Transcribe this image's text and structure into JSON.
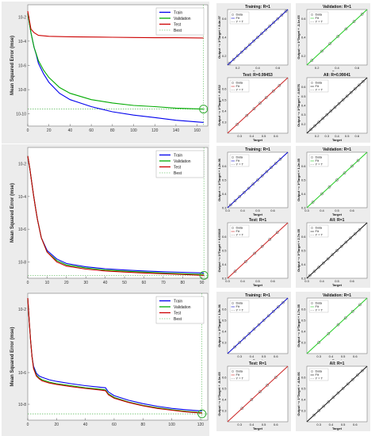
{
  "row_labels": [
    "JB",
    "T",
    "TG"
  ],
  "colors": {
    "train": "#0000ee",
    "validation": "#00aa00",
    "test": "#cc0000",
    "best": "#33aa33",
    "fit_train": "#0000cc",
    "fit_val": "#22cc22",
    "fit_test": "#cc2222",
    "fit_all": "#111111",
    "data_marker": "#555555"
  },
  "chart_data": [
    {
      "id": "perf-jb",
      "type": "line",
      "ylabel": "Mean Squared Error  (mse)",
      "yscale": "log",
      "ylim": [
        1e-11,
        0.1
      ],
      "xlim": [
        0,
        170
      ],
      "xticks": [
        0,
        20,
        40,
        60,
        80,
        100,
        120,
        140,
        160
      ],
      "yticks": [
        {
          "v": 0.01,
          "label": "10-2"
        },
        {
          "v": 0.0001,
          "label": "10-4"
        },
        {
          "v": 1e-06,
          "label": "10-6"
        },
        {
          "v": 1e-08,
          "label": "10-8"
        },
        {
          "v": 1e-10,
          "label": "10-10"
        }
      ],
      "legend": [
        "Train",
        "Validation",
        "Test",
        "Best"
      ],
      "best_epoch": 166,
      "best_value": 2.5e-10,
      "series": [
        {
          "name": "Train",
          "color": "#0000ee",
          "x": [
            0,
            3,
            6,
            8,
            10,
            15,
            20,
            30,
            40,
            60,
            80,
            100,
            120,
            140,
            166
          ],
          "y": [
            0.02,
            0.0005,
            3e-05,
            8e-06,
            1.5e-06,
            2e-07,
            4e-08,
            5e-09,
            1.5e-09,
            4e-10,
            1.5e-10,
            8e-11,
            5e-11,
            3e-11,
            2e-11
          ]
        },
        {
          "name": "Validation",
          "color": "#00aa00",
          "x": [
            0,
            3,
            6,
            8,
            10,
            15,
            20,
            30,
            40,
            60,
            80,
            100,
            120,
            140,
            166
          ],
          "y": [
            0.02,
            0.0005,
            3e-05,
            9e-06,
            2.5e-06,
            4e-07,
            1e-07,
            1.5e-08,
            5e-09,
            1.5e-09,
            8e-10,
            5e-10,
            4e-10,
            3e-10,
            2.5e-10
          ]
        },
        {
          "name": "Test",
          "color": "#cc0000",
          "x": [
            0,
            3,
            6,
            10,
            20,
            40,
            60,
            80,
            100,
            120,
            140,
            166
          ],
          "y": [
            0.03,
            0.001,
            0.0005,
            0.0003,
            0.00025,
            0.00023,
            0.00022,
            0.00021,
            0.0002,
            0.00019,
            0.00019,
            0.00018
          ]
        }
      ]
    },
    {
      "id": "perf-t",
      "type": "line",
      "ylabel": "Mean Squared Error  (mse)",
      "yscale": "log",
      "ylim": [
        1e-09,
        0.1
      ],
      "xlim": [
        0,
        93
      ],
      "xticks": [
        0,
        10,
        20,
        30,
        40,
        50,
        60,
        70,
        80,
        90
      ],
      "yticks": [
        {
          "v": 0.01,
          "label": "10-2"
        },
        {
          "v": 0.0001,
          "label": "10-4"
        },
        {
          "v": 1e-06,
          "label": "10-6"
        },
        {
          "v": 1e-08,
          "label": "10-8"
        }
      ],
      "legend": [
        "Train",
        "Validation",
        "Test",
        "Best"
      ],
      "best_epoch": 91,
      "best_value": 1.5e-09,
      "series": [
        {
          "name": "Train",
          "color": "#0000ee",
          "x": [
            0,
            1,
            2,
            3,
            4,
            5,
            7,
            10,
            15,
            20,
            30,
            40,
            50,
            60,
            70,
            80,
            91
          ],
          "y": [
            0.03,
            0.006,
            0.0008,
            0.00012,
            2e-05,
            4e-06,
            3e-07,
            5e-08,
            1.5e-08,
            8e-09,
            5e-09,
            3.8e-09,
            3.2e-09,
            2.8e-09,
            2.5e-09,
            2.3e-09,
            2.1e-09
          ]
        },
        {
          "name": "Validation",
          "color": "#00aa00",
          "x": [
            0,
            1,
            2,
            3,
            4,
            5,
            7,
            10,
            15,
            20,
            30,
            40,
            50,
            60,
            70,
            80,
            91
          ],
          "y": [
            0.03,
            0.006,
            0.0008,
            0.00012,
            2e-05,
            4e-06,
            3e-07,
            4e-08,
            1.2e-08,
            6.5e-09,
            4.2e-09,
            3.2e-09,
            2.7e-09,
            2.4e-09,
            2.1e-09,
            1.9e-09,
            1.7e-09
          ]
        },
        {
          "name": "Test",
          "color": "#cc0000",
          "x": [
            0,
            1,
            2,
            3,
            4,
            5,
            7,
            10,
            15,
            20,
            30,
            40,
            50,
            60,
            70,
            80,
            91
          ],
          "y": [
            0.03,
            0.006,
            0.0008,
            0.00012,
            2e-05,
            4e-06,
            3e-07,
            4e-08,
            1e-08,
            5.5e-09,
            3.6e-09,
            2.8e-09,
            2.4e-09,
            2.1e-09,
            1.9e-09,
            1.7e-09,
            1.5e-09
          ]
        }
      ]
    },
    {
      "id": "perf-tg",
      "type": "line",
      "ylabel": "Mean Squared Error  (mse)",
      "yscale": "log",
      "ylim": [
        1e-09,
        0.1
      ],
      "xlim": [
        0,
        125
      ],
      "xticks": [
        0,
        20,
        40,
        60,
        80,
        100,
        120
      ],
      "yticks": [
        {
          "v": 0.01,
          "label": "10-2"
        },
        {
          "v": 1e-06,
          "label": "10-6"
        },
        {
          "v": 1e-08,
          "label": "10-8"
        }
      ],
      "legend": [
        "Train",
        "Validation",
        "Test",
        "Best"
      ],
      "best_epoch": 121,
      "best_value": 2.5e-09,
      "series": [
        {
          "name": "Train",
          "color": "#0000ee",
          "x": [
            0,
            1,
            2,
            3,
            4,
            6,
            8,
            10,
            15,
            20,
            30,
            40,
            50,
            54,
            56,
            60,
            70,
            80,
            90,
            100,
            110,
            121
          ],
          "y": [
            0.05,
            0.002,
            0.0001,
            1e-05,
            2.5e-06,
            9e-07,
            6e-07,
            5e-07,
            3.5e-07,
            2.8e-07,
            2e-07,
            1.5e-07,
            1.2e-07,
            1.1e-07,
            6e-08,
            3.5e-08,
            1.8e-08,
            1.1e-08,
            7.5e-09,
            5.5e-09,
            4.5e-09,
            3.8e-09
          ]
        },
        {
          "name": "Validation",
          "color": "#00aa00",
          "x": [
            0,
            1,
            2,
            3,
            4,
            6,
            8,
            10,
            15,
            20,
            30,
            40,
            50,
            54,
            56,
            60,
            70,
            80,
            90,
            100,
            110,
            121
          ],
          "y": [
            0.05,
            0.002,
            0.0001,
            1e-05,
            2e-06,
            7e-07,
            4.5e-07,
            3.5e-07,
            2.5e-07,
            2e-07,
            1.5e-07,
            1.1e-07,
            9e-08,
            8e-08,
            4.5e-08,
            2.7e-08,
            1.4e-08,
            8.5e-09,
            6e-09,
            4.5e-09,
            3.6e-09,
            3e-09
          ]
        },
        {
          "name": "Test",
          "color": "#cc0000",
          "x": [
            0,
            1,
            2,
            3,
            4,
            6,
            8,
            10,
            15,
            20,
            30,
            40,
            50,
            54,
            56,
            60,
            70,
            80,
            90,
            100,
            110,
            121
          ],
          "y": [
            0.05,
            0.002,
            0.0001,
            1e-05,
            1.8e-06,
            6e-07,
            4e-07,
            3e-07,
            2.2e-07,
            1.8e-07,
            1.3e-07,
            1e-07,
            8e-08,
            7.2e-08,
            4e-08,
            2.4e-08,
            1.3e-08,
            8e-09,
            5.5e-09,
            4.2e-09,
            3.3e-09,
            2.8e-09
          ]
        }
      ]
    }
  ],
  "regressions": [
    {
      "row": 0,
      "col": 0,
      "title": "Training: R=1",
      "ylabel": "Output ~= 1*Target + 8.4e-07",
      "xlabel": "Target",
      "kind": "train",
      "legend": [
        "Data",
        "Fit",
        "Y = T"
      ],
      "range": [
        0.1,
        0.7
      ],
      "ticks": [
        "0.2",
        "0.4",
        "0.6"
      ],
      "points": [
        0.12,
        0.16,
        0.2,
        0.24,
        0.28,
        0.32,
        0.36,
        0.4,
        0.44,
        0.48,
        0.52,
        0.56,
        0.6,
        0.64,
        0.68
      ]
    },
    {
      "row": 0,
      "col": 1,
      "title": "Validation: R=1",
      "ylabel": "Output ~= 1*Target + -3.1e-05",
      "xlabel": "Target",
      "kind": "val",
      "legend": [
        "Data",
        "Fit",
        "Y = T"
      ],
      "range": [
        0.1,
        0.7
      ],
      "ticks": [
        "0.2",
        "0.4",
        "0.6"
      ],
      "points": [
        0.15,
        0.25,
        0.33,
        0.41,
        0.49,
        0.57,
        0.65
      ]
    },
    {
      "row": 0,
      "col": 2,
      "title": "Test: R=0.99453",
      "ylabel": "Output ~= 1*Target + -0.032",
      "xlabel": "Target",
      "kind": "test",
      "legend": [
        "Data",
        "Fit",
        "Y = T"
      ],
      "range": [
        0.2,
        0.7
      ],
      "ticks": [
        "0.3",
        "0.4",
        "0.5",
        "0.6"
      ],
      "points": [
        0.28,
        0.36,
        0.42,
        0.47,
        0.52,
        0.58,
        0.63
      ]
    },
    {
      "row": 0,
      "col": 3,
      "title": "All: R=0.99041",
      "ylabel": "Output ~= 1*Target + -0.0076",
      "xlabel": "Target",
      "kind": "all",
      "legend": [
        "Data",
        "Fit",
        "Y = T"
      ],
      "range": [
        0.1,
        0.7
      ],
      "ticks": [
        "0.2",
        "0.3",
        "0.4",
        "0.5",
        "0.6"
      ],
      "points": [
        0.14,
        0.18,
        0.22,
        0.26,
        0.3,
        0.34,
        0.38,
        0.42,
        0.46,
        0.5,
        0.54,
        0.58,
        0.62,
        0.66
      ]
    },
    {
      "row": 1,
      "col": 0,
      "title": "Training: R=1",
      "ylabel": "Output ~= 1*Target + 1.2e-06",
      "xlabel": "Target",
      "kind": "train",
      "legend": [
        "Data",
        "Fit",
        "Y = T"
      ],
      "range": [
        0.3,
        0.7
      ],
      "ticks": [
        "0.3",
        "0.4",
        "0.5",
        "0.6"
      ],
      "points": [
        0.32,
        0.35,
        0.38,
        0.41,
        0.44,
        0.47,
        0.5,
        0.53,
        0.56,
        0.59,
        0.62,
        0.65
      ]
    },
    {
      "row": 1,
      "col": 1,
      "title": "Validation: R=1",
      "ylabel": "Output ~= 1*Target + 1.2e-05",
      "xlabel": "Target",
      "kind": "val",
      "legend": [
        "Data",
        "Fit",
        "Y = T"
      ],
      "range": [
        0.3,
        0.7
      ],
      "ticks": [
        "0.3",
        "0.4",
        "0.5",
        "0.6"
      ],
      "points": [
        0.34,
        0.4,
        0.45,
        0.5,
        0.55,
        0.6,
        0.64
      ]
    },
    {
      "row": 1,
      "col": 2,
      "title": "Test: R=1",
      "ylabel": "Output ~= 1*Target + 0.00015",
      "xlabel": "Target",
      "kind": "test",
      "legend": [
        "Data",
        "Fit",
        "Y = T"
      ],
      "range": [
        0.3,
        0.7
      ],
      "ticks": [
        "0.3",
        "0.4",
        "0.5",
        "0.6"
      ],
      "points": [
        0.35,
        0.42,
        0.48,
        0.53,
        0.58,
        0.63
      ]
    },
    {
      "row": 1,
      "col": 3,
      "title": "All: R=1",
      "ylabel": "Output ~= 1*Target + 2.7e-05",
      "xlabel": "Target",
      "kind": "all",
      "legend": [
        "Data",
        "Fit",
        "Y = T"
      ],
      "range": [
        0.3,
        0.7
      ],
      "ticks": [
        "0.3",
        "0.4",
        "0.5",
        "0.6"
      ],
      "points": [
        0.32,
        0.35,
        0.38,
        0.41,
        0.44,
        0.47,
        0.5,
        0.53,
        0.56,
        0.59,
        0.62,
        0.65
      ]
    },
    {
      "row": 2,
      "col": 0,
      "title": "Training: R=1",
      "ylabel": "Output ~= 1*Target + 1.5e-06",
      "xlabel": "Target",
      "kind": "train",
      "legend": [
        "Data",
        "Fit",
        "Y = T"
      ],
      "range": [
        0.2,
        0.7
      ],
      "ticks": [
        "0.3",
        "0.4",
        "0.5",
        "0.6"
      ],
      "points": [
        0.26,
        0.3,
        0.34,
        0.38,
        0.42,
        0.46,
        0.5,
        0.54,
        0.58,
        0.62,
        0.66
      ]
    },
    {
      "row": 2,
      "col": 1,
      "title": "Validation: R=1",
      "ylabel": "Output ~= 1*Target + 1.7e-05",
      "xlabel": "Target",
      "kind": "val",
      "legend": [
        "Data",
        "Fit",
        "Y = T"
      ],
      "range": [
        0.2,
        0.7
      ],
      "ticks": [
        "0.3",
        "0.4",
        "0.5",
        "0.6"
      ],
      "points": [
        0.3,
        0.38,
        0.46,
        0.52,
        0.58,
        0.64
      ]
    },
    {
      "row": 2,
      "col": 2,
      "title": "Test: R=1",
      "ylabel": "Output ~= 1*Target + -5.3e-05",
      "xlabel": "Target",
      "kind": "test",
      "legend": [
        "Data",
        "Fit",
        "Y = T"
      ],
      "range": [
        0.2,
        0.7
      ],
      "ticks": [
        "0.3",
        "0.4",
        "0.5",
        "0.6"
      ],
      "points": [
        0.32,
        0.4,
        0.47,
        0.53,
        0.6
      ]
    },
    {
      "row": 2,
      "col": 3,
      "title": "All: R=1",
      "ylabel": "Output ~= 1*Target + -4.8e-06",
      "xlabel": "Target",
      "kind": "all",
      "legend": [
        "Data",
        "Fit",
        "Y = T"
      ],
      "range": [
        0.2,
        0.7
      ],
      "ticks": [
        "0.3",
        "0.4",
        "0.5",
        "0.6"
      ],
      "points": [
        0.26,
        0.3,
        0.34,
        0.38,
        0.42,
        0.46,
        0.5,
        0.54,
        0.58,
        0.62,
        0.66
      ]
    }
  ]
}
